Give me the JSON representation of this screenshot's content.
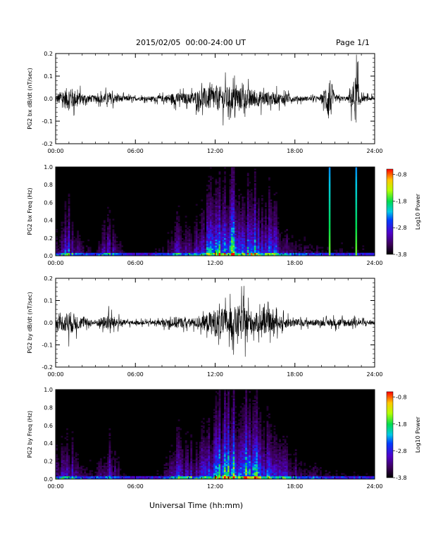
{
  "header": {
    "title": "2015/02/05  00:00-24:00 UT",
    "page": "Page 1/1"
  },
  "footer": {
    "xlabel": "Universal Time (hh:mm)"
  },
  "colorbar": {
    "ticks": [
      "-0.8",
      "-1.8",
      "-2.8",
      "-3.8"
    ],
    "label": "Log10 Power",
    "range": [
      -3.8,
      -0.6
    ]
  },
  "chart_data": [
    {
      "type": "line",
      "title": "",
      "ylabel": "PG2 bx dB/dt (nT/sec)",
      "xlabel": "",
      "xlim": [
        0,
        24
      ],
      "ylim": [
        -0.2,
        0.2
      ],
      "xticks": [
        "00:00",
        "06:00",
        "12:00",
        "18:00",
        "24:00"
      ],
      "yticks": [
        "0.2",
        "0.1",
        "0.0",
        "-0.1",
        "-0.2"
      ],
      "series": [
        {
          "x": [
            0,
            1,
            2,
            3,
            4,
            5,
            6,
            7,
            8,
            9,
            10,
            11,
            12,
            13,
            14,
            15,
            16,
            17,
            18,
            19,
            20,
            20.6,
            21,
            22,
            22.6,
            23,
            24
          ],
          "envelope": [
            0.04,
            0.12,
            0.05,
            0.03,
            0.06,
            0.03,
            0.02,
            0.02,
            0.03,
            0.06,
            0.05,
            0.1,
            0.12,
            0.12,
            0.11,
            0.08,
            0.07,
            0.05,
            0.03,
            0.02,
            0.02,
            0.25,
            0.03,
            0.02,
            0.25,
            0.03,
            0.02
          ]
        }
      ]
    },
    {
      "type": "heatmap",
      "title": "",
      "ylabel": "PG2 bx Freq (Hz)",
      "xlabel": "",
      "xlim": [
        0,
        24
      ],
      "ylim": [
        0,
        1.0
      ],
      "xticks": [
        "00:00",
        "06:00",
        "12:00",
        "18:00",
        "24:00"
      ],
      "yticks": [
        "1.0",
        "0.8",
        "0.6",
        "0.4",
        "0.2",
        "0.0"
      ],
      "zlim": [
        -3.8,
        -0.6
      ],
      "activity_hours": [
        0,
        1,
        2,
        3,
        4,
        5,
        6,
        7,
        8,
        9,
        10,
        11,
        12,
        13,
        14,
        15,
        16,
        17,
        18,
        19,
        20,
        21,
        22,
        23
      ],
      "activity_level": [
        0.2,
        0.35,
        0.15,
        0.1,
        0.3,
        0.1,
        0.05,
        0.05,
        0.1,
        0.3,
        0.2,
        0.35,
        0.55,
        0.6,
        0.55,
        0.5,
        0.45,
        0.3,
        0.2,
        0.15,
        0.1,
        0.1,
        0.08,
        0.08
      ],
      "spikes_hours": [
        20.6,
        22.6
      ]
    },
    {
      "type": "line",
      "title": "",
      "ylabel": "PG2 by dB/dt (nT/sec)",
      "xlabel": "",
      "xlim": [
        0,
        24
      ],
      "ylim": [
        -0.2,
        0.2
      ],
      "xticks": [
        "00:00",
        "06:00",
        "12:00",
        "18:00",
        "24:00"
      ],
      "yticks": [
        "0.2",
        "0.1",
        "0.0",
        "-0.1",
        "-0.2"
      ],
      "series": [
        {
          "x": [
            0,
            1,
            2,
            3,
            4,
            5,
            6,
            7,
            8,
            9,
            10,
            11,
            12,
            13,
            14,
            15,
            16,
            17,
            18,
            19,
            20,
            21,
            22,
            23,
            24
          ],
          "envelope": [
            0.04,
            0.12,
            0.05,
            0.03,
            0.08,
            0.03,
            0.02,
            0.02,
            0.03,
            0.06,
            0.04,
            0.06,
            0.14,
            0.14,
            0.18,
            0.1,
            0.1,
            0.06,
            0.04,
            0.03,
            0.03,
            0.04,
            0.04,
            0.03,
            0.02
          ]
        }
      ]
    },
    {
      "type": "heatmap",
      "title": "",
      "ylabel": "PG2 by Freq (Hz)",
      "xlabel": "",
      "xlim": [
        0,
        24
      ],
      "ylim": [
        0,
        1.0
      ],
      "xticks": [
        "00:00",
        "06:00",
        "12:00",
        "18:00",
        "24:00"
      ],
      "yticks": [
        "1.0",
        "0.8",
        "0.6",
        "0.4",
        "0.2",
        "0.0"
      ],
      "zlim": [
        -3.8,
        -0.6
      ],
      "activity_hours": [
        0,
        1,
        2,
        3,
        4,
        5,
        6,
        7,
        8,
        9,
        10,
        11,
        12,
        13,
        14,
        15,
        16,
        17,
        18,
        19,
        20,
        21,
        22,
        23
      ],
      "activity_level": [
        0.2,
        0.35,
        0.15,
        0.1,
        0.3,
        0.1,
        0.05,
        0.05,
        0.1,
        0.35,
        0.25,
        0.4,
        0.55,
        0.65,
        0.6,
        0.55,
        0.5,
        0.35,
        0.2,
        0.15,
        0.1,
        0.1,
        0.08,
        0.08
      ],
      "spikes_hours": []
    }
  ]
}
